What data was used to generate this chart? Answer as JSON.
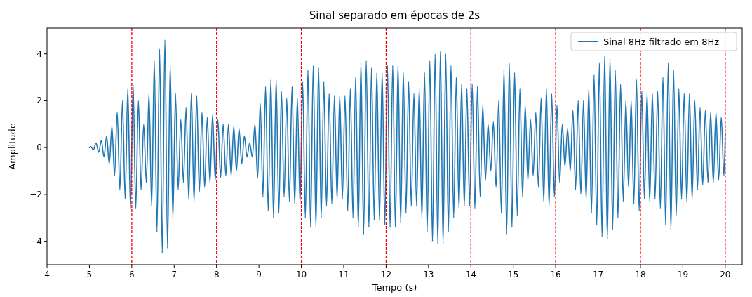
{
  "chart_data": {
    "type": "line",
    "title": "Sinal separado em épocas de 2s",
    "xlabel": "Tempo (s)",
    "ylabel": "Amplitude",
    "xlim": [
      4,
      20.4
    ],
    "xticks": [
      4,
      5,
      6,
      7,
      8,
      9,
      10,
      11,
      12,
      13,
      14,
      15,
      16,
      17,
      18,
      19,
      20
    ],
    "ylim": [
      -5.0,
      5.1
    ],
    "yticks": [
      -4,
      -2,
      0,
      2,
      4
    ],
    "grid": false,
    "legend": "top right",
    "marker": "none",
    "line_style": "solid",
    "ref_lines": [
      {
        "axis": "x",
        "value": 6,
        "color": "#ff0000",
        "line_style": "dashed"
      },
      {
        "axis": "x",
        "value": 8,
        "color": "#ff0000",
        "line_style": "dashed"
      },
      {
        "axis": "x",
        "value": 10,
        "color": "#ff0000",
        "line_style": "dashed"
      },
      {
        "axis": "x",
        "value": 12,
        "color": "#ff0000",
        "line_style": "dashed"
      },
      {
        "axis": "x",
        "value": 14,
        "color": "#ff0000",
        "line_style": "dashed"
      },
      {
        "axis": "x",
        "value": 16,
        "color": "#ff0000",
        "line_style": "dashed"
      },
      {
        "axis": "x",
        "value": 18,
        "color": "#ff0000",
        "line_style": "dashed"
      },
      {
        "axis": "x",
        "value": 20,
        "color": "#ff0000",
        "line_style": "dashed"
      }
    ],
    "x": [
      5.0,
      5.031,
      5.094,
      5.156,
      5.219,
      5.281,
      5.344,
      5.406,
      5.469,
      5.531,
      5.594,
      5.656,
      5.719,
      5.781,
      5.844,
      5.906,
      5.969,
      6.031,
      6.094,
      6.156,
      6.219,
      6.281,
      6.344,
      6.406,
      6.469,
      6.531,
      6.594,
      6.656,
      6.719,
      6.781,
      6.844,
      6.906,
      6.969,
      7.031,
      7.094,
      7.156,
      7.219,
      7.281,
      7.344,
      7.406,
      7.469,
      7.531,
      7.594,
      7.656,
      7.719,
      7.781,
      7.844,
      7.906,
      7.969,
      8.031,
      8.094,
      8.156,
      8.219,
      8.281,
      8.344,
      8.406,
      8.469,
      8.531,
      8.594,
      8.656,
      8.719,
      8.781,
      8.844,
      8.906,
      8.969,
      9.031,
      9.094,
      9.156,
      9.219,
      9.281,
      9.344,
      9.406,
      9.469,
      9.531,
      9.594,
      9.656,
      9.719,
      9.781,
      9.844,
      9.906,
      9.969,
      10.031,
      10.094,
      10.156,
      10.219,
      10.281,
      10.344,
      10.406,
      10.469,
      10.531,
      10.594,
      10.656,
      10.719,
      10.781,
      10.844,
      10.906,
      10.969,
      11.031,
      11.094,
      11.156,
      11.219,
      11.281,
      11.344,
      11.406,
      11.469,
      11.531,
      11.594,
      11.656,
      11.719,
      11.781,
      11.844,
      11.906,
      11.969,
      12.031,
      12.094,
      12.156,
      12.219,
      12.281,
      12.344,
      12.406,
      12.469,
      12.531,
      12.594,
      12.656,
      12.719,
      12.781,
      12.844,
      12.906,
      12.969,
      13.031,
      13.094,
      13.156,
      13.219,
      13.281,
      13.344,
      13.406,
      13.469,
      13.531,
      13.594,
      13.656,
      13.719,
      13.781,
      13.844,
      13.906,
      13.969,
      14.031,
      14.094,
      14.156,
      14.219,
      14.281,
      14.344,
      14.406,
      14.469,
      14.531,
      14.594,
      14.656,
      14.719,
      14.781,
      14.844,
      14.906,
      14.969,
      15.031,
      15.094,
      15.156,
      15.219,
      15.281,
      15.344,
      15.406,
      15.469,
      15.531,
      15.594,
      15.656,
      15.719,
      15.781,
      15.844,
      15.906,
      15.969,
      16.031,
      16.094,
      16.156,
      16.219,
      16.281,
      16.344,
      16.406,
      16.469,
      16.531,
      16.594,
      16.656,
      16.719,
      16.781,
      16.844,
      16.906,
      16.969,
      17.031,
      17.094,
      17.156,
      17.219,
      17.281,
      17.344,
      17.406,
      17.469,
      17.531,
      17.594,
      17.656,
      17.719,
      17.781,
      17.844,
      17.906,
      17.969,
      18.031,
      18.094,
      18.156,
      18.219,
      18.281,
      18.344,
      18.406,
      18.469,
      18.531,
      18.594,
      18.656,
      18.719,
      18.781,
      18.844,
      18.906,
      18.969,
      19.031,
      19.094,
      19.156,
      19.219,
      19.281,
      19.344,
      19.406,
      19.469,
      19.531,
      19.594,
      19.656,
      19.719,
      19.781,
      19.844,
      19.906,
      19.969,
      20.0
    ],
    "series": [
      {
        "name": "Sinal 8Hz filtrado em 8Hz",
        "color": "#1f77b4",
        "values": [
          0,
          0.05,
          -0.1,
          0.2,
          -0.2,
          0.3,
          -0.4,
          0.5,
          -0.7,
          0.9,
          -1.2,
          1.5,
          -1.8,
          2.0,
          -2.2,
          2.5,
          -2.6,
          2.7,
          -2.6,
          2.0,
          -1.8,
          1.0,
          -1.5,
          2.3,
          -2.5,
          3.7,
          -3.6,
          4.2,
          -4.5,
          4.6,
          -4.3,
          3.5,
          -3.0,
          2.3,
          -1.8,
          1.2,
          -1.5,
          1.7,
          -2.2,
          2.3,
          -2.3,
          2.2,
          -1.9,
          1.5,
          -1.7,
          1.3,
          -1.5,
          1.4,
          -1.4,
          1.2,
          -1.3,
          1.0,
          -1.2,
          1.0,
          -1.2,
          0.9,
          -1.0,
          0.8,
          -0.7,
          0.5,
          -0.4,
          0.2,
          -0.4,
          1.0,
          -1.3,
          1.9,
          -2.1,
          2.6,
          -2.7,
          2.9,
          -3.0,
          2.9,
          -2.8,
          2.4,
          -2.1,
          2.1,
          -2.3,
          2.6,
          -2.4,
          2.1,
          -2.4,
          2.8,
          -3.0,
          3.3,
          -3.4,
          3.5,
          -3.4,
          3.4,
          -3.0,
          2.8,
          -2.5,
          2.3,
          -2.4,
          2.2,
          -2.2,
          2.2,
          -2.2,
          2.2,
          -2.7,
          2.5,
          -3.0,
          3.0,
          -3.4,
          3.6,
          -3.7,
          3.7,
          -3.4,
          3.4,
          -3.1,
          3.2,
          -3.1,
          3.2,
          -3.3,
          3.5,
          -3.4,
          3.5,
          -3.4,
          3.5,
          -3.2,
          3.2,
          -2.8,
          2.8,
          -2.5,
          2.3,
          -2.5,
          2.5,
          -3.0,
          3.2,
          -3.6,
          3.7,
          -4.0,
          4.0,
          -4.1,
          4.1,
          -4.1,
          4.0,
          -3.6,
          3.5,
          -3.0,
          3.0,
          -2.6,
          2.7,
          -2.5,
          2.5,
          -2.5,
          2.7,
          -2.6,
          2.6,
          -2.1,
          1.8,
          -1.4,
          1.0,
          -1.0,
          1.1,
          -1.7,
          2.0,
          -2.8,
          3.3,
          -3.7,
          3.6,
          -3.4,
          3.2,
          -2.9,
          2.5,
          -2.1,
          1.8,
          -1.4,
          1.2,
          -1.2,
          1.5,
          -1.7,
          2.1,
          -2.3,
          2.5,
          -2.5,
          2.3,
          -2.1,
          1.8,
          -1.5,
          1.0,
          -0.8,
          0.8,
          -1.0,
          1.6,
          -1.8,
          2.0,
          -2.0,
          2.0,
          -2.2,
          2.5,
          -2.8,
          3.1,
          -3.3,
          3.6,
          -3.8,
          3.9,
          -3.9,
          3.8,
          -3.5,
          3.3,
          -3.0,
          2.7,
          -2.3,
          2.0,
          -1.7,
          2.0,
          -2.4,
          2.9,
          -2.7,
          2.4,
          -2.2,
          2.3,
          -2.3,
          2.3,
          -2.2,
          2.4,
          -2.6,
          3.0,
          -3.3,
          3.6,
          -3.5,
          3.3,
          -2.9,
          2.5,
          -2.2,
          2.3,
          -2.3,
          2.3,
          -2.2,
          2.0,
          -1.8,
          1.7,
          -1.6,
          1.6,
          -1.5,
          1.5,
          -1.5,
          1.5,
          -1.4,
          1.3,
          -1.2,
          0.6
        ]
      }
    ]
  }
}
